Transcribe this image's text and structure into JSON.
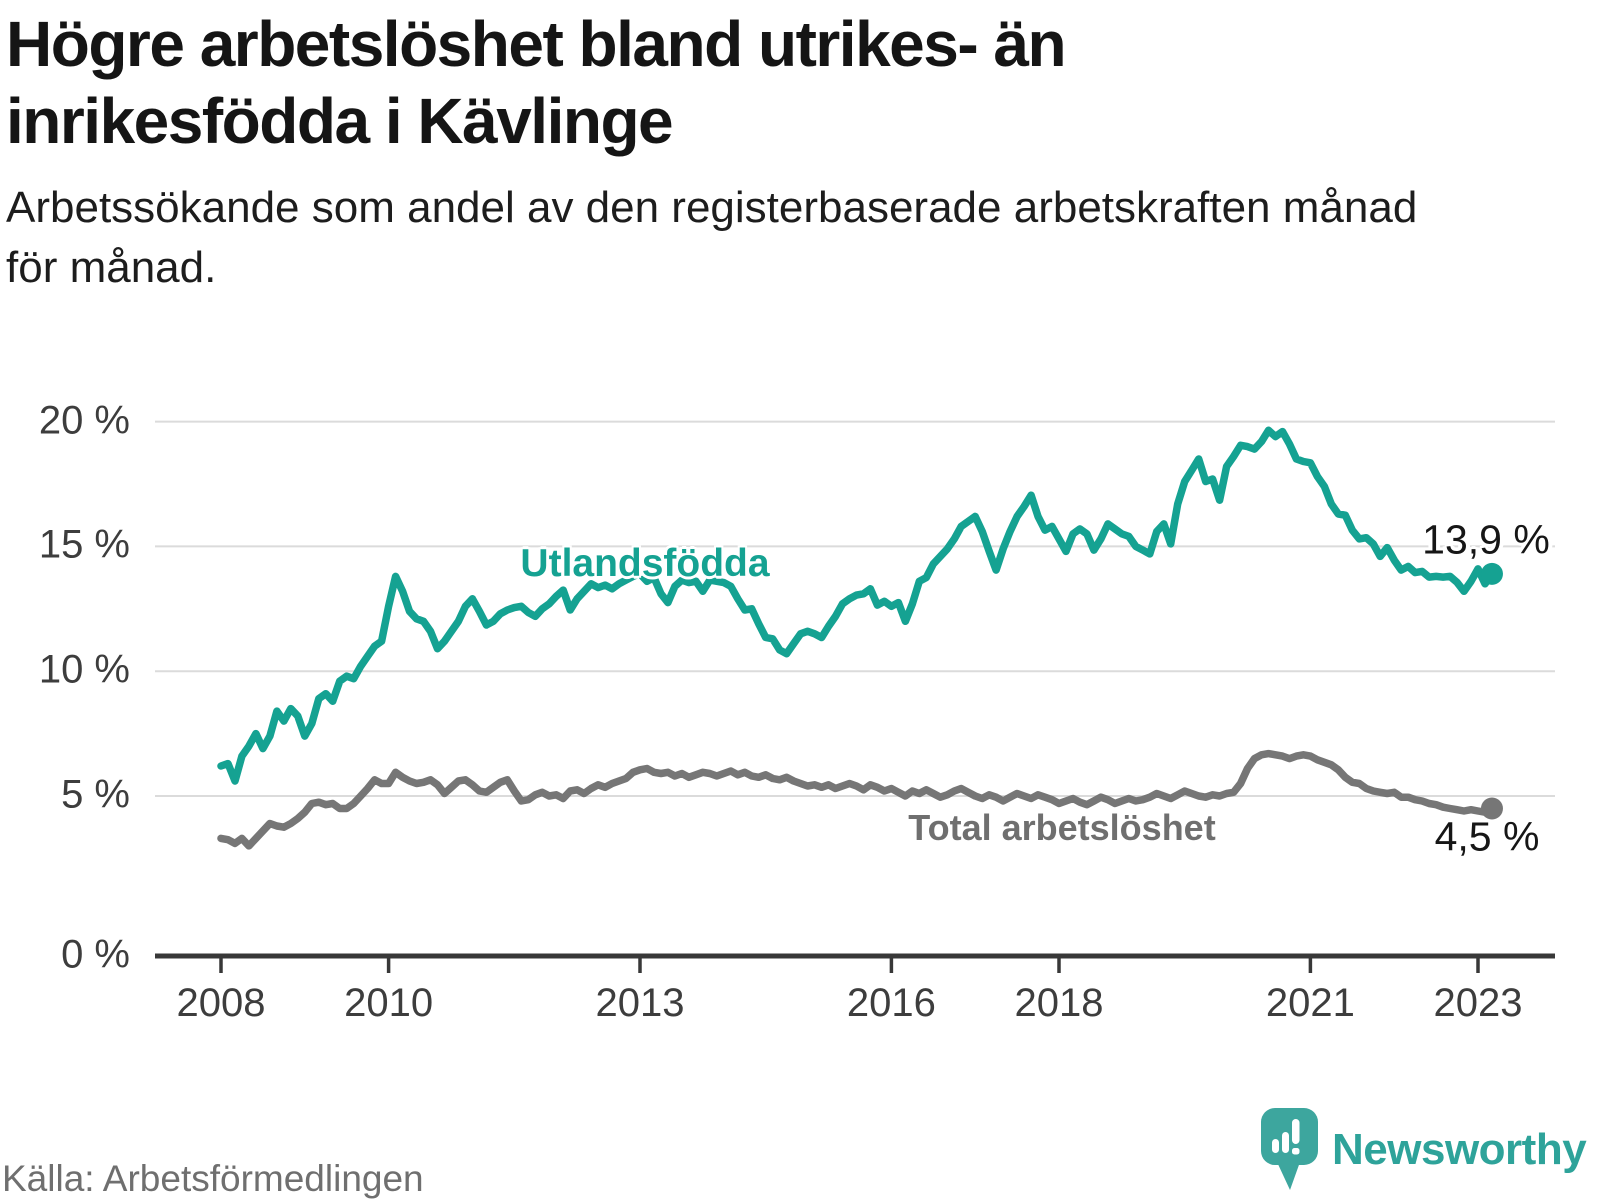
{
  "header": {
    "title_lines": [
      "Högre arbetslöshet bland utrikes- än",
      "inrikesfödda i Kävlinge"
    ],
    "subtitle_lines": [
      "Arbetssökande som andel av den registerbaserade arbetskraften månad",
      "för månad."
    ]
  },
  "chart_data": {
    "type": "line",
    "title": "Högre arbetslöshet bland utrikes- än inrikesfödda i Kävlinge",
    "subtitle": "Arbetssökande som andel av den registerbaserade arbetskraften månad för månad.",
    "x_unit": "month",
    "x_start": "2008-01",
    "x_end": "2023-03",
    "x_ticks": [
      2008,
      2010,
      2013,
      2016,
      2018,
      2021,
      2023
    ],
    "y_ticks": [
      20,
      15,
      10,
      5,
      0
    ],
    "y_tick_labels": [
      "20 %",
      "15 %",
      "10 %",
      "5 %",
      "0 %"
    ],
    "ylim": [
      0,
      21
    ],
    "grid": "horizontal",
    "legend_position": "inline-labels",
    "series": [
      {
        "name": "Utlandsfödda",
        "color": "#15a292",
        "end_label": "13,9 %",
        "end_value": 13.9,
        "values": [
          6.2,
          6.3,
          5.6,
          6.6,
          7.0,
          7.5,
          6.9,
          7.4,
          8.4,
          8.0,
          8.5,
          8.2,
          7.4,
          7.9,
          8.9,
          9.1,
          8.8,
          9.6,
          9.8,
          9.7,
          10.2,
          10.6,
          11.0,
          11.2,
          12.6,
          13.8,
          13.2,
          12.4,
          12.1,
          12.0,
          11.6,
          10.9,
          11.2,
          11.6,
          12.0,
          12.6,
          12.9,
          12.4,
          11.85,
          12.0,
          12.3,
          12.45,
          12.55,
          12.6,
          12.35,
          12.2,
          12.5,
          12.7,
          13.0,
          13.25,
          12.45,
          12.9,
          13.2,
          13.5,
          13.35,
          13.45,
          13.3,
          13.5,
          13.65,
          13.8,
          13.9,
          13.6,
          13.75,
          13.1,
          12.75,
          13.4,
          13.65,
          13.55,
          13.6,
          13.2,
          13.65,
          13.6,
          13.55,
          13.4,
          12.9,
          12.45,
          12.5,
          11.9,
          11.35,
          11.3,
          10.85,
          10.7,
          11.1,
          11.5,
          11.6,
          11.5,
          11.35,
          11.8,
          12.2,
          12.7,
          12.9,
          13.05,
          13.1,
          13.3,
          12.65,
          12.8,
          12.6,
          12.75,
          12.0,
          12.7,
          13.6,
          13.75,
          14.3,
          14.6,
          14.9,
          15.3,
          15.8,
          16.0,
          16.2,
          15.6,
          14.8,
          14.05,
          14.9,
          15.6,
          16.2,
          16.6,
          17.05,
          16.2,
          15.65,
          15.8,
          15.3,
          14.8,
          15.5,
          15.7,
          15.5,
          14.85,
          15.3,
          15.9,
          15.7,
          15.5,
          15.4,
          15.0,
          14.85,
          14.7,
          15.6,
          15.9,
          15.1,
          16.7,
          17.6,
          18.05,
          18.5,
          17.6,
          17.7,
          16.85,
          18.2,
          18.6,
          19.05,
          19.0,
          18.9,
          19.2,
          19.65,
          19.4,
          19.6,
          19.1,
          18.5,
          18.4,
          18.35,
          17.8,
          17.4,
          16.7,
          16.3,
          16.25,
          15.65,
          15.3,
          15.35,
          15.1,
          14.6,
          14.95,
          14.45,
          14.05,
          14.2,
          13.95,
          14.0,
          13.77,
          13.8,
          13.77,
          13.8,
          13.56,
          13.2,
          13.6,
          14.1,
          13.5,
          13.9
        ]
      },
      {
        "name": "Total arbetslöshet",
        "color": "#767676",
        "end_label": "4,5 %",
        "end_value": 4.5,
        "values": [
          3.3,
          3.25,
          3.1,
          3.3,
          3.0,
          3.3,
          3.6,
          3.9,
          3.8,
          3.75,
          3.9,
          4.1,
          4.35,
          4.7,
          4.75,
          4.65,
          4.7,
          4.5,
          4.5,
          4.7,
          5.0,
          5.3,
          5.65,
          5.5,
          5.5,
          5.95,
          5.75,
          5.6,
          5.5,
          5.55,
          5.65,
          5.45,
          5.1,
          5.35,
          5.6,
          5.65,
          5.45,
          5.2,
          5.15,
          5.35,
          5.55,
          5.65,
          5.2,
          4.8,
          4.85,
          5.05,
          5.15,
          5.0,
          5.05,
          4.9,
          5.2,
          5.25,
          5.1,
          5.3,
          5.45,
          5.35,
          5.5,
          5.6,
          5.7,
          5.95,
          6.05,
          6.1,
          5.95,
          5.9,
          5.95,
          5.8,
          5.9,
          5.75,
          5.85,
          5.95,
          5.9,
          5.8,
          5.9,
          6.0,
          5.85,
          5.95,
          5.8,
          5.75,
          5.85,
          5.7,
          5.65,
          5.75,
          5.6,
          5.5,
          5.4,
          5.45,
          5.35,
          5.45,
          5.3,
          5.4,
          5.5,
          5.4,
          5.25,
          5.45,
          5.35,
          5.2,
          5.3,
          5.15,
          5.0,
          5.2,
          5.1,
          5.25,
          5.1,
          4.95,
          5.05,
          5.2,
          5.3,
          5.15,
          5.0,
          4.9,
          5.05,
          4.95,
          4.8,
          4.95,
          5.1,
          5.0,
          4.9,
          5.05,
          4.95,
          4.85,
          4.7,
          4.8,
          4.9,
          4.75,
          4.65,
          4.8,
          4.95,
          4.85,
          4.7,
          4.8,
          4.9,
          4.8,
          4.85,
          4.95,
          5.1,
          5.0,
          4.9,
          5.05,
          5.2,
          5.1,
          5.0,
          4.95,
          5.05,
          5.0,
          5.1,
          5.15,
          5.5,
          6.1,
          6.5,
          6.65,
          6.7,
          6.65,
          6.6,
          6.5,
          6.6,
          6.65,
          6.6,
          6.45,
          6.35,
          6.25,
          6.05,
          5.75,
          5.55,
          5.5,
          5.3,
          5.2,
          5.15,
          5.1,
          5.15,
          4.95,
          4.95,
          4.85,
          4.8,
          4.7,
          4.65,
          4.55,
          4.5,
          4.45,
          4.4,
          4.45,
          4.4,
          4.35,
          4.5
        ]
      }
    ]
  },
  "footer": {
    "source": "Källa: Arbetsförmedlingen",
    "brand": "Newsworthy"
  }
}
